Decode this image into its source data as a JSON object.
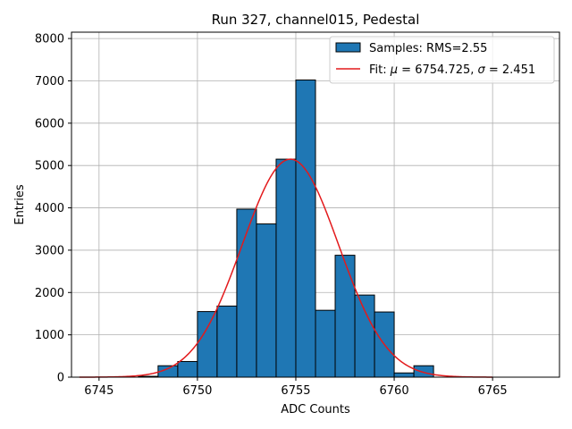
{
  "chart_data": {
    "type": "bar",
    "title": "Run 327, channel015, Pedestal",
    "xlabel": "ADC Counts",
    "ylabel": "Entries",
    "xlim": [
      6743.6,
      6768.4
    ],
    "ylim": [
      0,
      8150
    ],
    "xticks": [
      6745,
      6750,
      6755,
      6760,
      6765
    ],
    "yticks": [
      0,
      1000,
      2000,
      3000,
      4000,
      5000,
      6000,
      7000,
      8000
    ],
    "grid": true,
    "legend_position": "top-right",
    "bar_color": "#1f77b4",
    "fit_color": "#e31a1c",
    "histogram": {
      "name": "Samples: RMS=2.55",
      "bin_width": 1,
      "bin_starts": [
        6747,
        6748,
        6749,
        6750,
        6751,
        6752,
        6753,
        6754,
        6755,
        6756,
        6757,
        6758,
        6759,
        6760,
        6761
      ],
      "values": [
        20,
        270,
        370,
        1550,
        1680,
        3970,
        3620,
        5150,
        7020,
        1580,
        2880,
        1940,
        1540,
        100,
        270
      ]
    },
    "fit": {
      "name": "Fit: μ = 6754.725, σ = 2.451",
      "name_prefix": "Fit: ",
      "mu_symbol": "μ",
      "mu_value": " = 6754.725, ",
      "sigma_symbol": "σ",
      "sigma_value": " = 2.451",
      "mu": 6754.725,
      "sigma": 2.451,
      "amplitude": 5150,
      "x_range": [
        6744,
        6765
      ]
    }
  }
}
